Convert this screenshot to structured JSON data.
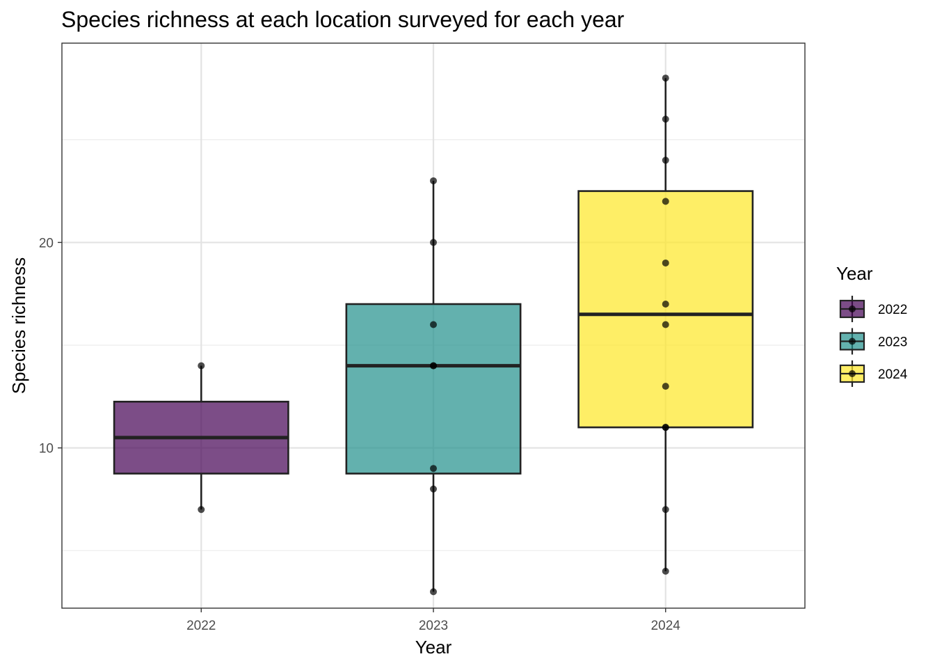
{
  "chart_data": {
    "type": "boxplot",
    "title": "Species richness at each location surveyed for each year",
    "xlabel": "Year",
    "ylabel": "Species richness",
    "categories": [
      "2022",
      "2023",
      "2024"
    ],
    "ylim": [
      2.2,
      29.7
    ],
    "y_ticks": [
      10,
      20
    ],
    "y_tick_labels": [
      "10",
      "20"
    ],
    "y_minor_ticks": [
      5,
      15,
      25
    ],
    "grid": true,
    "legend": {
      "title": "Year",
      "placement": "right",
      "entries": [
        "2022",
        "2023",
        "2024"
      ]
    },
    "colors": [
      "#440154",
      "#21908C",
      "#FDE725"
    ],
    "fill_opacity": 0.7,
    "boxes": [
      {
        "category": "2022",
        "q1": 8.75,
        "median": 10.5,
        "q3": 12.25,
        "whisker_low": 7,
        "whisker_high": 14,
        "points": [
          7,
          14
        ]
      },
      {
        "category": "2023",
        "q1": 8.75,
        "median": 14,
        "q3": 17,
        "whisker_low": 3,
        "whisker_high": 23,
        "points": [
          3,
          8,
          9,
          14,
          14,
          16,
          20,
          23
        ]
      },
      {
        "category": "2024",
        "q1": 11,
        "median": 16.5,
        "q3": 22.5,
        "whisker_low": 4,
        "whisker_high": 28,
        "points": [
          4,
          7,
          11,
          11,
          13,
          16,
          17,
          19,
          22,
          24,
          26,
          28
        ]
      }
    ]
  }
}
